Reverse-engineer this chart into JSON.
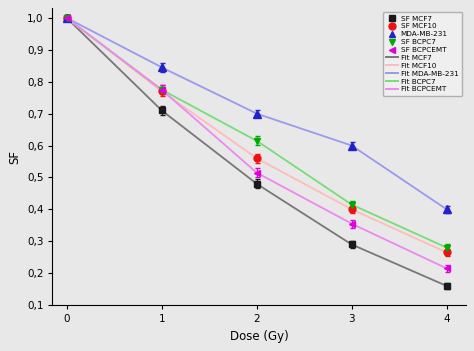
{
  "title": "",
  "xlabel": "Dose (Gy)",
  "ylabel": "SF",
  "xlim": [
    -0.15,
    4.2
  ],
  "ylim": [
    0.1,
    1.03
  ],
  "yticks": [
    0.1,
    0.2,
    0.3,
    0.4,
    0.5,
    0.6,
    0.7,
    0.8,
    0.9,
    1.0
  ],
  "xticks": [
    0,
    1,
    2,
    3,
    4
  ],
  "series": {
    "MCF7": {
      "x": [
        0,
        1,
        2,
        3,
        4
      ],
      "y": [
        1.0,
        0.71,
        0.48,
        0.29,
        0.16
      ],
      "yerr": [
        0.008,
        0.014,
        0.014,
        0.012,
        0.009
      ],
      "color": "#1a1a1a",
      "marker": "s",
      "markersize": 5,
      "label_data": "SF MCF7",
      "label_fit": "Fit MCF7",
      "fit_color": "#777777"
    },
    "MCF10": {
      "x": [
        0,
        1,
        2,
        3,
        4
      ],
      "y": [
        1.0,
        0.77,
        0.56,
        0.4,
        0.265
      ],
      "yerr": [
        0.008,
        0.014,
        0.014,
        0.012,
        0.011
      ],
      "color": "#ee1111",
      "marker": "o",
      "markersize": 5,
      "label_data": "SF MCF10",
      "label_fit": "Fit MCF10",
      "fit_color": "#ffbbbb"
    },
    "MDA": {
      "x": [
        0,
        1,
        2,
        3,
        4
      ],
      "y": [
        1.0,
        0.845,
        0.7,
        0.6,
        0.4
      ],
      "yerr": [
        0.008,
        0.013,
        0.011,
        0.011,
        0.011
      ],
      "color": "#2222cc",
      "marker": "^",
      "markersize": 6,
      "label_data": "MDA-MB-231",
      "label_fit": "Fit MDA-MB-231",
      "fit_color": "#9999ee"
    },
    "BCPC7": {
      "x": [
        0,
        1,
        2,
        3,
        4
      ],
      "y": [
        1.0,
        0.775,
        0.615,
        0.415,
        0.28
      ],
      "yerr": [
        0.008,
        0.014,
        0.014,
        0.012,
        0.011
      ],
      "color": "#00aa00",
      "marker": "v",
      "markersize": 5,
      "label_data": "SF BCPC7",
      "label_fit": "Fit BCPC7",
      "fit_color": "#77dd77"
    },
    "BCPCEMT": {
      "x": [
        0,
        1,
        2,
        3,
        4
      ],
      "y": [
        1.0,
        0.775,
        0.515,
        0.355,
        0.215
      ],
      "yerr": [
        0.008,
        0.014,
        0.014,
        0.012,
        0.011
      ],
      "color": "#dd00dd",
      "marker": "<",
      "markersize": 5,
      "label_data": "SF BCPCEMT",
      "label_fit": "Fit BCPCEMT",
      "fit_color": "#ee88ee"
    }
  },
  "series_order": [
    "MCF7",
    "MCF10",
    "MDA",
    "BCPC7",
    "BCPCEMT"
  ],
  "background_color": "#e8e8e8",
  "plot_bg_color": "#e8e8e8"
}
